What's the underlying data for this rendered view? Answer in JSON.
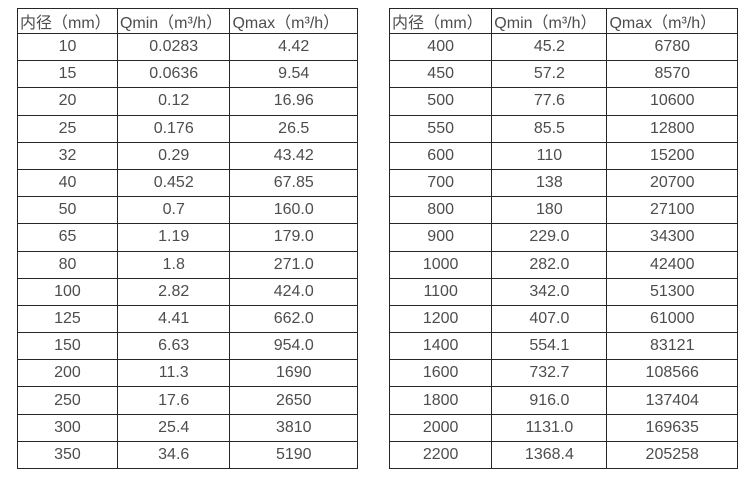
{
  "colors": {
    "background": "#ffffff",
    "border": "#262626",
    "text": "#4d4d4d"
  },
  "tables": [
    {
      "name": "flow-table-small-diameters",
      "headers": [
        "内径（mm）",
        "Qmin（m³/h）",
        "Qmax（m³/h）"
      ],
      "rows": [
        [
          "10",
          "0.0283",
          "4.42"
        ],
        [
          "15",
          "0.0636",
          "9.54"
        ],
        [
          "20",
          "0.12",
          "16.96"
        ],
        [
          "25",
          "0.176",
          "26.5"
        ],
        [
          "32",
          "0.29",
          "43.42"
        ],
        [
          "40",
          "0.452",
          "67.85"
        ],
        [
          "50",
          "0.7",
          "160.0"
        ],
        [
          "65",
          "1.19",
          "179.0"
        ],
        [
          "80",
          "1.8",
          "271.0"
        ],
        [
          "100",
          "2.82",
          "424.0"
        ],
        [
          "125",
          "4.41",
          "662.0"
        ],
        [
          "150",
          "6.63",
          "954.0"
        ],
        [
          "200",
          "11.3",
          "1690"
        ],
        [
          "250",
          "17.6",
          "2650"
        ],
        [
          "300",
          "25.4",
          "3810"
        ],
        [
          "350",
          "34.6",
          "5190"
        ]
      ]
    },
    {
      "name": "flow-table-large-diameters",
      "headers": [
        "内径（mm）",
        "Qmin（m³/h）",
        "Qmax（m³/h）"
      ],
      "rows": [
        [
          "400",
          "45.2",
          "6780"
        ],
        [
          "450",
          "57.2",
          "8570"
        ],
        [
          "500",
          "77.6",
          "10600"
        ],
        [
          "550",
          "85.5",
          "12800"
        ],
        [
          "600",
          "110",
          "15200"
        ],
        [
          "700",
          "138",
          "20700"
        ],
        [
          "800",
          "180",
          "27100"
        ],
        [
          "900",
          "229.0",
          "34300"
        ],
        [
          "1000",
          "282.0",
          "42400"
        ],
        [
          "1100",
          "342.0",
          "51300"
        ],
        [
          "1200",
          "407.0",
          "61000"
        ],
        [
          "1400",
          "554.1",
          "83121"
        ],
        [
          "1600",
          "732.7",
          "108566"
        ],
        [
          "1800",
          "916.0",
          "137404"
        ],
        [
          "2000",
          "1131.0",
          "169635"
        ],
        [
          "2200",
          "1368.4",
          "205258"
        ]
      ]
    }
  ]
}
